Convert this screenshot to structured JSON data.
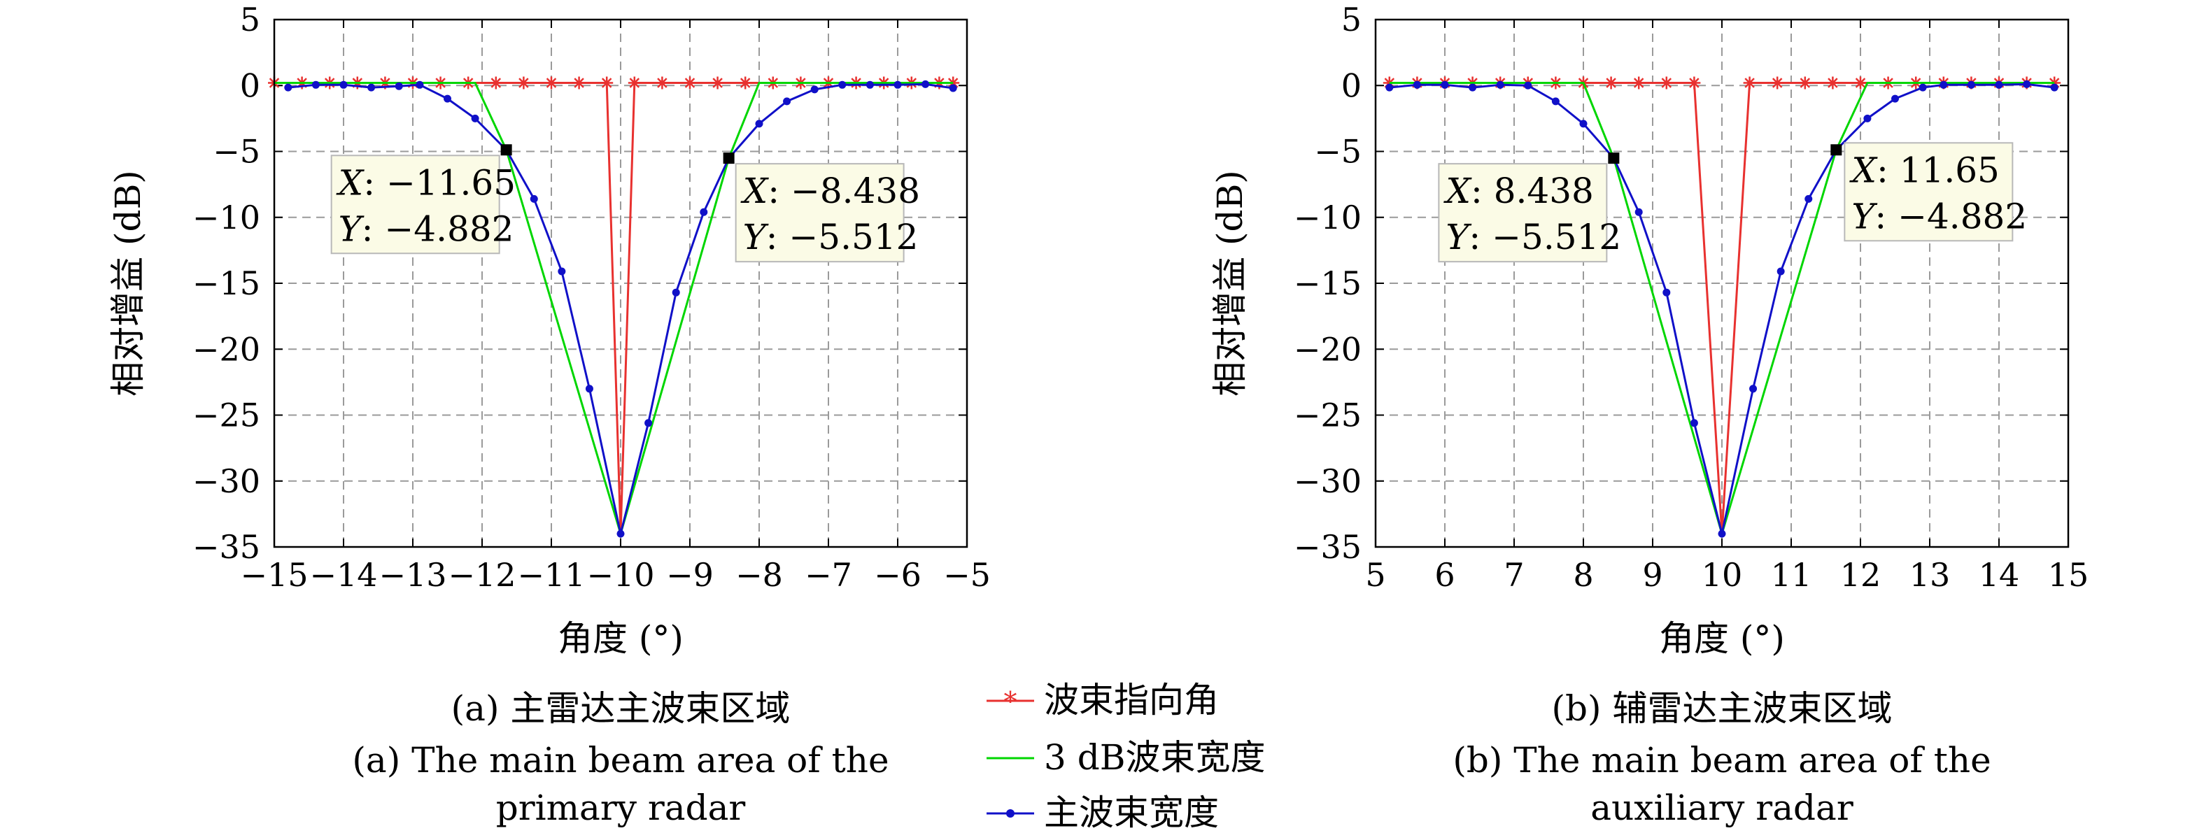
{
  "chart_data": [
    {
      "type": "line",
      "xlabel": "角度 (°)",
      "ylabel": "相对增益 (dB)",
      "xlim": [
        -15,
        -5
      ],
      "ylim": [
        -35,
        5
      ],
      "xticks": [
        -15,
        -14,
        -13,
        -12,
        -11,
        -10,
        -9,
        -8,
        -7,
        -6,
        -5
      ],
      "yticks": [
        5,
        0,
        -5,
        -10,
        -15,
        -20,
        -25,
        -30,
        -35
      ],
      "xtick_labels": [
        "−15",
        "−14",
        "−13",
        "−12",
        "−11",
        "−10",
        "−9",
        "−8",
        "−7",
        "−6",
        "−5"
      ],
      "ytick_labels": [
        "5",
        "0",
        "−5",
        "−10",
        "−15",
        "−20",
        "−25",
        "−30",
        "−35"
      ],
      "grid": true,
      "caption_lines": [
        "(a) 主雷达主波束区域",
        "(a) The main beam area of the",
        "primary radar"
      ],
      "series": [
        {
          "name": "波束指向角",
          "color": "#e8312f",
          "marker": "star",
          "x": [
            -15,
            -14.6,
            -14.2,
            -13.8,
            -13.4,
            -13.0,
            -12.6,
            -12.2,
            -11.8,
            -11.4,
            -11.0,
            -10.6,
            -10.2,
            -10.0,
            -9.8,
            -9.4,
            -9.0,
            -8.6,
            -8.2,
            -7.8,
            -7.4,
            -7.0,
            -6.6,
            -6.2,
            -5.8,
            -5.4,
            -5.2
          ],
          "y": [
            0.2,
            0.2,
            0.2,
            0.2,
            0.2,
            0.2,
            0.2,
            0.2,
            0.2,
            0.2,
            0.2,
            0.2,
            0.2,
            -34,
            0.2,
            0.2,
            0.2,
            0.2,
            0.2,
            0.2,
            0.2,
            0.2,
            0.2,
            0.2,
            0.2,
            0.2,
            0.2
          ],
          "markers": [
            true,
            true,
            true,
            true,
            true,
            true,
            true,
            true,
            true,
            true,
            true,
            true,
            true,
            false,
            true,
            true,
            true,
            true,
            true,
            true,
            true,
            true,
            true,
            true,
            true,
            true,
            true
          ]
        },
        {
          "name": "3 dB波束宽度",
          "color": "#00d600",
          "marker": "none",
          "x": [
            -15,
            -12.1,
            -11.65,
            -10.0,
            -8.438,
            -8.0,
            -5.2
          ],
          "y": [
            0.2,
            0.2,
            -4.882,
            -34,
            -5.512,
            0.2,
            0.2
          ]
        },
        {
          "name": "主波束宽度",
          "color": "#1010c8",
          "marker": "dot",
          "x": [
            -14.8,
            -14.4,
            -14.0,
            -13.6,
            -13.2,
            -12.9,
            -12.5,
            -12.1,
            -11.65,
            -11.25,
            -10.85,
            -10.45,
            -10.0,
            -9.6,
            -9.2,
            -8.8,
            -8.438,
            -8.0,
            -7.6,
            -7.2,
            -6.8,
            -6.4,
            -6.0,
            -5.6,
            -5.2
          ],
          "y": [
            -0.15,
            0.05,
            0.05,
            -0.15,
            -0.05,
            0.05,
            -1.0,
            -2.5,
            -4.882,
            -8.6,
            -14.1,
            -23.0,
            -34,
            -25.6,
            -15.7,
            -9.6,
            -5.512,
            -2.9,
            -1.2,
            -0.3,
            0.05,
            0.05,
            0.05,
            0.1,
            -0.2
          ]
        }
      ],
      "datatips": [
        {
          "x": -11.65,
          "y": -4.882,
          "x_label": "X",
          "x_text": ": −11.65",
          "y_label": "Y",
          "y_text": ": −4.882",
          "side": "lower-left"
        },
        {
          "x": -8.438,
          "y": -5.512,
          "x_label": "X",
          "x_text": ": −8.438",
          "y_label": "Y",
          "y_text": ": −5.512",
          "side": "lower-right"
        }
      ]
    },
    {
      "type": "line",
      "xlabel": "角度 (°)",
      "ylabel": "相对增益 (dB)",
      "xlim": [
        5,
        15
      ],
      "ylim": [
        -35,
        5
      ],
      "xticks": [
        5,
        6,
        7,
        8,
        9,
        10,
        11,
        12,
        13,
        14,
        15
      ],
      "yticks": [
        5,
        0,
        -5,
        -10,
        -15,
        -20,
        -25,
        -30,
        -35
      ],
      "xtick_labels": [
        "5",
        "6",
        "7",
        "8",
        "9",
        "10",
        "11",
        "12",
        "13",
        "14",
        "15"
      ],
      "ytick_labels": [
        "5",
        "0",
        "−5",
        "−10",
        "−15",
        "−20",
        "−25",
        "−30",
        "−35"
      ],
      "grid": true,
      "caption_lines": [
        "(b) 辅雷达主波束区域",
        "(b) The main beam area of the",
        "auxiliary radar"
      ],
      "series": [
        {
          "name": "波束指向角",
          "color": "#e8312f",
          "marker": "star",
          "x": [
            5.2,
            5.6,
            6.0,
            6.4,
            6.8,
            7.2,
            7.6,
            8.0,
            8.4,
            8.8,
            9.2,
            9.6,
            10.0,
            10.4,
            10.8,
            11.2,
            11.6,
            12.0,
            12.4,
            12.8,
            13.2,
            13.6,
            14.0,
            14.4,
            14.8
          ],
          "y": [
            0.2,
            0.2,
            0.2,
            0.2,
            0.2,
            0.2,
            0.2,
            0.2,
            0.2,
            0.2,
            0.2,
            0.2,
            -34,
            0.2,
            0.2,
            0.2,
            0.2,
            0.2,
            0.2,
            0.2,
            0.2,
            0.2,
            0.2,
            0.2,
            0.2
          ],
          "markers": [
            true,
            true,
            true,
            true,
            true,
            true,
            true,
            true,
            true,
            true,
            true,
            true,
            false,
            true,
            true,
            true,
            true,
            true,
            true,
            true,
            true,
            true,
            true,
            true,
            true
          ]
        },
        {
          "name": "3 dB波束宽度",
          "color": "#00d600",
          "marker": "none",
          "x": [
            5.2,
            8.0,
            8.438,
            10.0,
            11.65,
            12.1,
            14.8
          ],
          "y": [
            0.2,
            0.2,
            -5.512,
            -34,
            -4.882,
            0.2,
            0.2
          ]
        },
        {
          "name": "主波束宽度",
          "color": "#1010c8",
          "marker": "dot",
          "x": [
            5.2,
            5.6,
            6.0,
            6.4,
            6.8,
            7.2,
            7.6,
            8.0,
            8.438,
            8.8,
            9.2,
            9.6,
            10.0,
            10.45,
            10.85,
            11.25,
            11.65,
            12.1,
            12.5,
            12.9,
            13.2,
            13.6,
            14.0,
            14.4,
            14.8
          ],
          "y": [
            -0.15,
            0.05,
            0.05,
            -0.15,
            0.05,
            0.0,
            -1.2,
            -2.9,
            -5.512,
            -9.6,
            -15.7,
            -25.6,
            -34,
            -23.0,
            -14.1,
            -8.6,
            -4.882,
            -2.5,
            -1.0,
            -0.15,
            0.05,
            0.05,
            0.05,
            0.1,
            -0.15
          ]
        }
      ],
      "datatips": [
        {
          "x": 8.438,
          "y": -5.512,
          "x_label": "X",
          "x_text": ": 8.438",
          "y_label": "Y",
          "y_text": ": −5.512",
          "side": "lower-left"
        },
        {
          "x": 11.65,
          "y": -4.882,
          "x_label": "X",
          "x_text": ": 11.65",
          "y_label": "Y",
          "y_text": ": −4.882",
          "side": "right"
        }
      ]
    }
  ],
  "legend": {
    "placement": "bottom-center",
    "entries": [
      {
        "label": "波束指向角",
        "color": "#e8312f",
        "marker": "star"
      },
      {
        "label": "3 dB波束宽度",
        "color": "#00d600",
        "marker": "none"
      },
      {
        "label": "主波束宽度",
        "color": "#1010c8",
        "marker": "dot"
      }
    ]
  }
}
